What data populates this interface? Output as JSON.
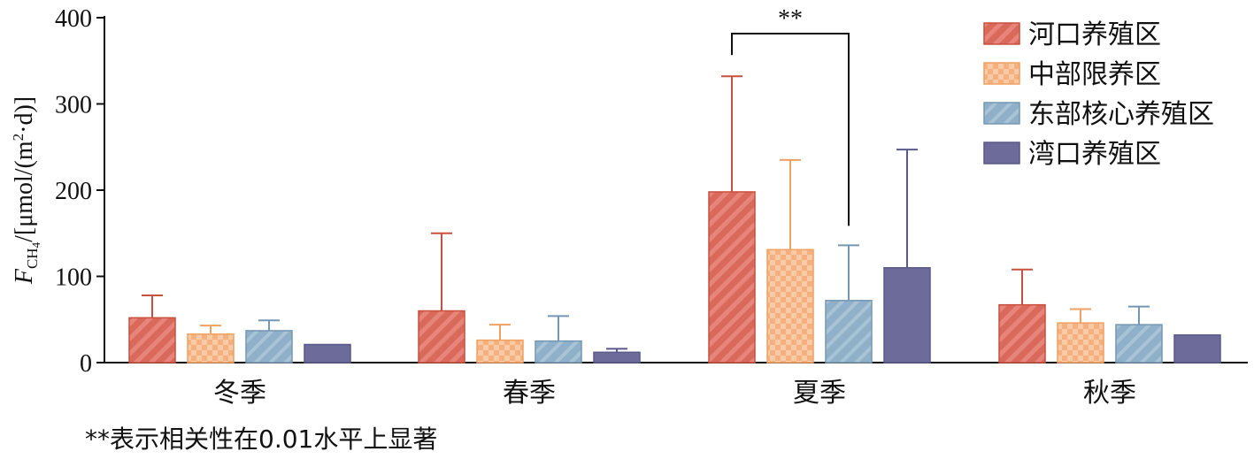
{
  "chart_data": {
    "type": "bar",
    "categories": [
      "冬季",
      "春季",
      "夏季",
      "秋季"
    ],
    "ylabel": "F_CH4/[μmol/(m²·d)]",
    "ylabel_parts": {
      "F": "F",
      "sub": "CH",
      "sub_digit": "4",
      "rest": "/[μmol/(m",
      "sup": "2",
      "tail": "·d)]"
    },
    "ylim": [
      0,
      400
    ],
    "yticks": [
      0,
      100,
      200,
      300,
      400
    ],
    "grid": false,
    "legend_position": "top-right",
    "series": [
      {
        "name": "河口养殖区",
        "values": [
          52,
          60,
          198,
          67
        ],
        "errors": [
          26,
          90,
          134,
          41
        ],
        "color": "#d9695a",
        "edge": "#c8503f",
        "pattern": "diagonal"
      },
      {
        "name": "中部限养区",
        "values": [
          33,
          26,
          131,
          46
        ],
        "errors": [
          10,
          18,
          104,
          16
        ],
        "color": "#f4b07f",
        "edge": "#f0a060",
        "pattern": "checker"
      },
      {
        "name": "东部核心养殖区",
        "values": [
          37,
          25,
          72,
          44
        ],
        "errors": [
          12,
          29,
          64,
          21
        ],
        "color": "#8fb0c8",
        "edge": "#7497b3",
        "pattern": "diagonal-thin"
      },
      {
        "name": "湾口养殖区",
        "values": [
          21,
          12,
          110,
          32
        ],
        "errors": [
          0,
          4,
          137,
          0
        ],
        "color": "#6c6b99",
        "edge": "#5a5988",
        "pattern": "solid"
      }
    ],
    "annotation": {
      "text": "**",
      "category_index": 2,
      "from_series": 0,
      "to_series": 2
    }
  },
  "footnote": "**表示相关性在0.01水平上显著"
}
